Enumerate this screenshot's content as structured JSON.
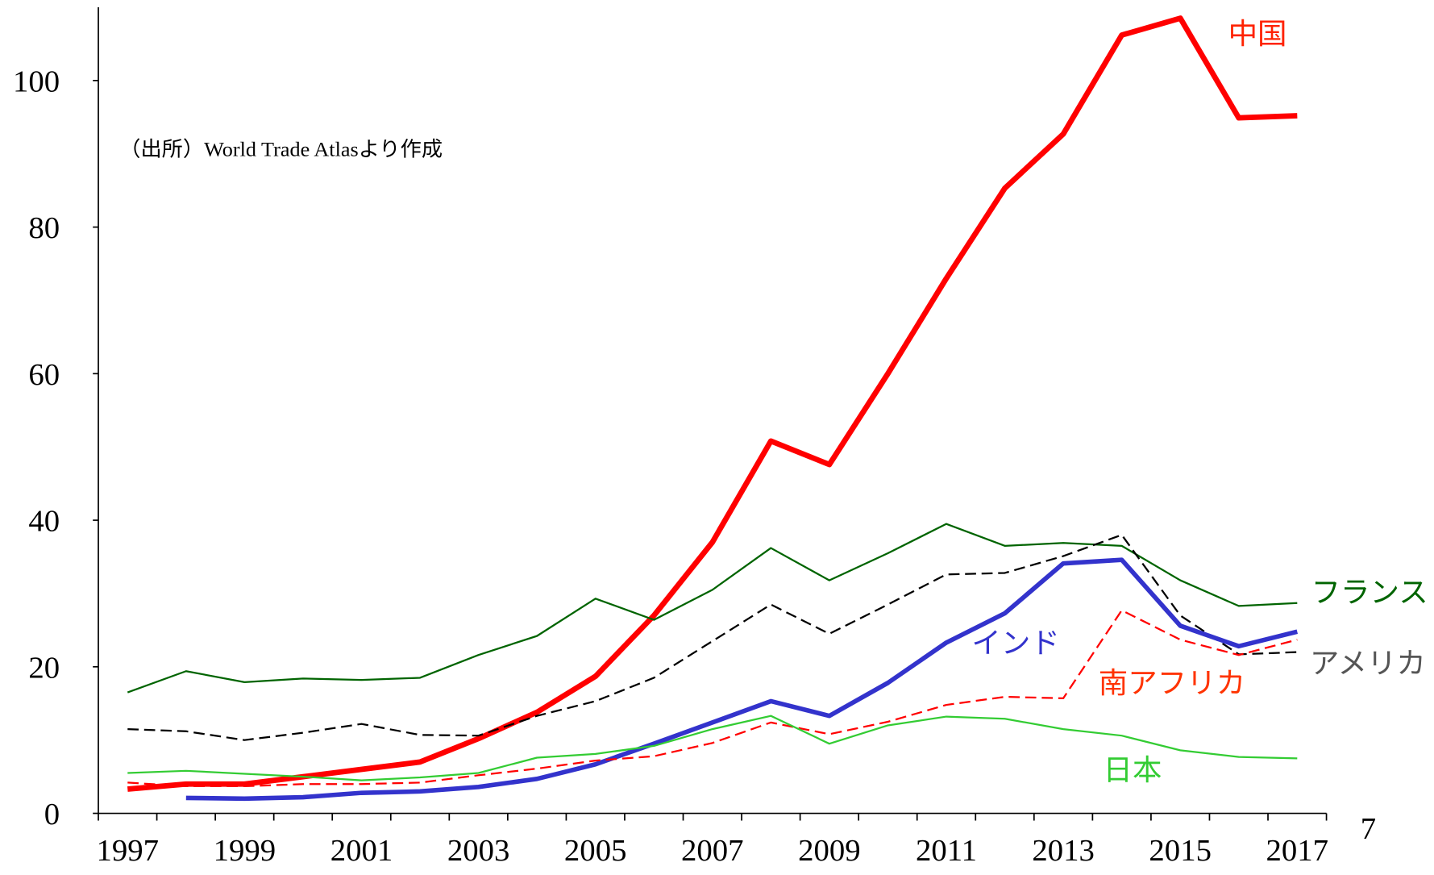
{
  "chart_data": {
    "type": "line",
    "note": "（出所）World Trade Atlasより作成",
    "annotation": "7",
    "categories": [
      "1997",
      null,
      "1999",
      null,
      "2001",
      null,
      "2003",
      null,
      "2005",
      null,
      "2007",
      null,
      "2009",
      null,
      "2011",
      null,
      "2013",
      null,
      "2015",
      null,
      "2017"
    ],
    "ylim": [
      0,
      110
    ],
    "yticks": [
      0,
      20,
      40,
      60,
      80,
      100
    ],
    "series": [
      {
        "name": "中国",
        "color": "#ff0000",
        "width": 6,
        "dash": false,
        "values": [
          3.3,
          4,
          4,
          5,
          6,
          7,
          10.2,
          13.8,
          18.7,
          27,
          37,
          50.8,
          47.6,
          60,
          73,
          85.3,
          92.7,
          106.2,
          108.5,
          94.9,
          95.2
        ]
      },
      {
        "name": "フランス",
        "color": "#006400",
        "width": 2,
        "dash": false,
        "values": [
          16.5,
          19.4,
          17.9,
          18.4,
          18.2,
          18.5,
          21.6,
          24.2,
          29.3,
          26.4,
          30.5,
          36.2,
          31.8,
          35.5,
          39.5,
          36.5,
          36.9,
          36.5,
          31.8,
          28.3,
          28.7
        ]
      },
      {
        "name": "アメリカ",
        "color": "#000000",
        "width": 2,
        "dash": true,
        "values": [
          11.5,
          11.2,
          10,
          11,
          12.2,
          10.7,
          10.6,
          13.3,
          15.3,
          18.5,
          23.5,
          28.5,
          24.5,
          28.5,
          32.6,
          32.8,
          35.1,
          38,
          27,
          21.7,
          22
        ]
      },
      {
        "name": "インド",
        "color": "#3333cc",
        "width": 5,
        "dash": false,
        "values": [
          null,
          2.1,
          2,
          2.2,
          2.8,
          3,
          3.6,
          4.7,
          6.7,
          9.5,
          12.4,
          15.3,
          13.3,
          17.8,
          23.3,
          27.3,
          34.1,
          34.6,
          25.6,
          22.8,
          24.8
        ]
      },
      {
        "name": "南アフリカ",
        "color": "#ff0000",
        "width": 2,
        "dash": true,
        "values": [
          4.2,
          3.7,
          3.7,
          4,
          4,
          4.2,
          5.2,
          6.1,
          7.2,
          7.8,
          9.6,
          12.4,
          10.8,
          12.5,
          14.8,
          15.9,
          15.7,
          27.7,
          23.7,
          21.6,
          23.7
        ]
      },
      {
        "name": "日本",
        "color": "#33cc33",
        "width": 2,
        "dash": false,
        "values": [
          5.5,
          5.8,
          5.4,
          5,
          4.5,
          4.9,
          5.5,
          7.6,
          8.1,
          9.2,
          11.5,
          13.3,
          9.5,
          12,
          13.2,
          12.9,
          11.5,
          10.6,
          8.6,
          7.7,
          7.5
        ]
      }
    ]
  }
}
